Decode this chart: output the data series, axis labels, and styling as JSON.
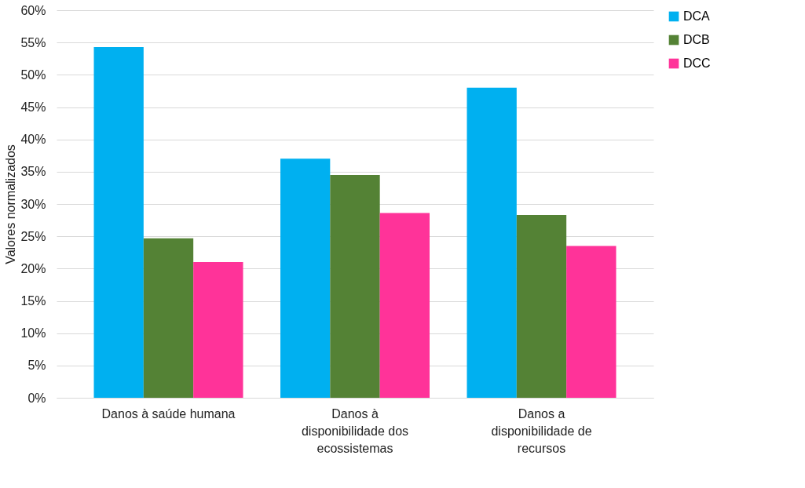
{
  "chart_data": {
    "type": "bar",
    "categories": [
      "Danos à saúde humana",
      "Danos à disponibilidade dos ecossistemas",
      "Danos a disponibilidade de recursos"
    ],
    "ylabel": "Valores normalizados",
    "series": [
      {
        "name": "DCA",
        "color": "#00b0f0",
        "values": [
          54.3,
          37.0,
          48.0
        ]
      },
      {
        "name": "DCB",
        "color": "#548235",
        "values": [
          24.7,
          34.5,
          28.3
        ]
      },
      {
        "name": "DCC",
        "color": "#ff3399",
        "values": [
          21.0,
          28.6,
          23.5
        ]
      }
    ],
    "ylim": [
      0,
      60
    ],
    "yticks": [
      {
        "value": 0,
        "label": "0%"
      },
      {
        "value": 5,
        "label": "5%"
      },
      {
        "value": 10,
        "label": "10%"
      },
      {
        "value": 15,
        "label": "15%"
      },
      {
        "value": 20,
        "label": "20%"
      },
      {
        "value": 25,
        "label": "25%"
      },
      {
        "value": 30,
        "label": "30%"
      },
      {
        "value": 35,
        "label": "35%"
      },
      {
        "value": 40,
        "label": "40%"
      },
      {
        "value": 45,
        "label": "45%"
      },
      {
        "value": 50,
        "label": "50%"
      },
      {
        "value": 55,
        "label": "55%"
      },
      {
        "value": 60,
        "label": "60%"
      }
    ],
    "grid": "y",
    "legend": "top right"
  }
}
